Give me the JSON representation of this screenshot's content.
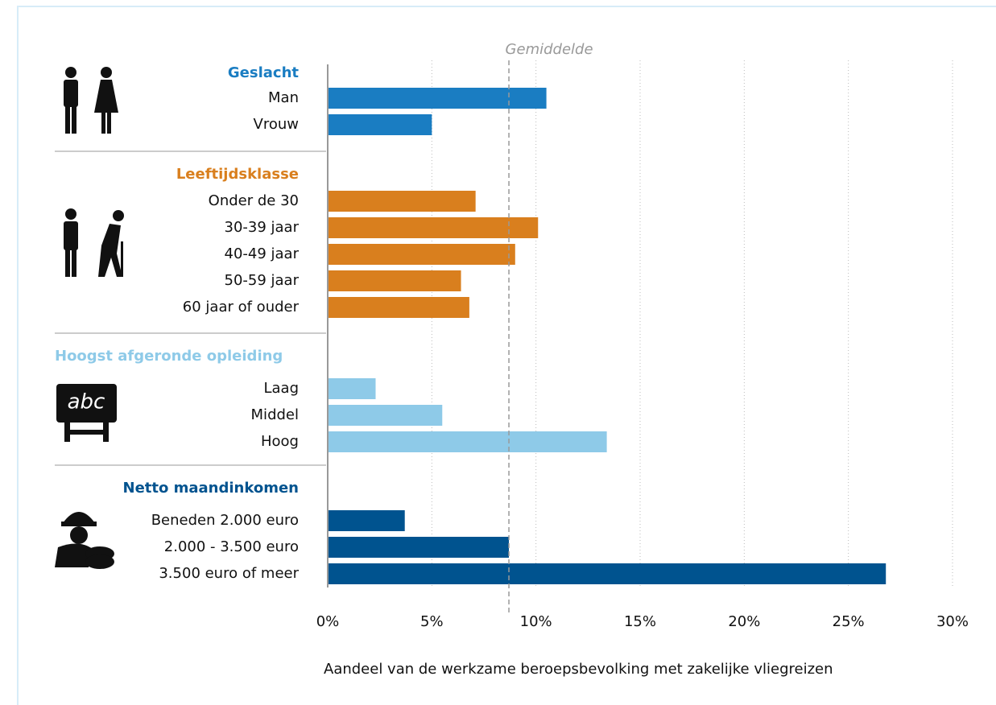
{
  "chart_data": {
    "type": "bar",
    "groups": [
      {
        "name": "Geslacht",
        "color": "#1a7dc2",
        "categories": [
          "Man",
          "Vrouw"
        ],
        "values": [
          10.5,
          5.0
        ]
      },
      {
        "name": "Leeftijdsklasse",
        "color": "#d97f1e",
        "categories": [
          "Onder de 30",
          "30-39 jaar",
          "40-49 jaar",
          "50-59 jaar",
          "60 jaar of ouder"
        ],
        "values": [
          7.1,
          10.1,
          9.0,
          6.4,
          6.8
        ]
      },
      {
        "name": "Hoogst afgeronde opleiding",
        "color": "#8ecae8",
        "categories": [
          "Laag",
          "Middel",
          "Hoog"
        ],
        "values": [
          2.3,
          5.5,
          13.4
        ]
      },
      {
        "name": "Netto maandinkomen",
        "color": "#00538f",
        "categories": [
          "Beneden 2.000 euro",
          "2.000 - 3.500 euro",
          "3.500 euro of meer"
        ],
        "values": [
          3.7,
          8.7,
          26.8
        ]
      }
    ],
    "average": {
      "label": "Gemiddelde",
      "value": 8.7
    },
    "xlabel": "Aandeel van de werkzame beroepsbevolking met zakelijke vliegreizen",
    "xlim": [
      0,
      30
    ],
    "xticks": [
      {
        "value": 0,
        "label": "0%"
      },
      {
        "value": 5,
        "label": "5%"
      },
      {
        "value": 10,
        "label": "10%"
      },
      {
        "value": 15,
        "label": "15%"
      },
      {
        "value": 20,
        "label": "20%"
      },
      {
        "value": 25,
        "label": "25%"
      },
      {
        "value": 30,
        "label": "30%"
      }
    ],
    "grid": true
  }
}
